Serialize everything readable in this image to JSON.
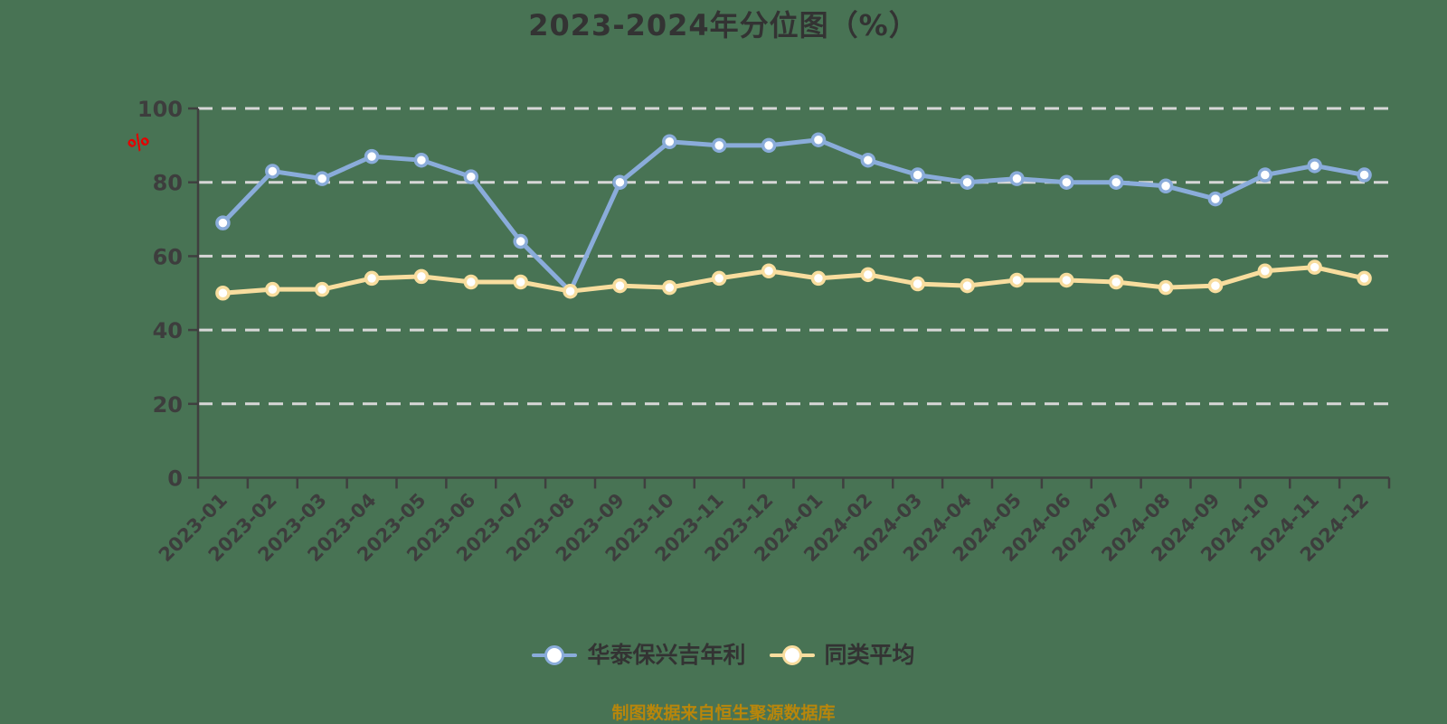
{
  "title": "2023-2024年分位图（%）",
  "y_axis_unit": "%",
  "source_note": "制图数据来自恒生聚源数据库",
  "colors": {
    "background": "#487354",
    "title_text": "#333333",
    "tick_label": "#3d3d3d",
    "gridline": "#d7d7d7",
    "axis": "#3f3f3f",
    "unit_icon": "#e60000",
    "source_text": "#b8860b",
    "marker_fill": "#ffffff",
    "series1": "#8aacda",
    "series2": "#f8dd9e"
  },
  "chart_data": {
    "type": "line",
    "title": "2023-2024年分位图（%）",
    "xlabel": "",
    "ylabel": "%",
    "ylim": [
      0,
      100
    ],
    "yticks": [
      0,
      20,
      40,
      60,
      80,
      100
    ],
    "grid": "dashed horizontal",
    "legend_position": "bottom",
    "categories": [
      "2023-01",
      "2023-02",
      "2023-03",
      "2023-04",
      "2023-05",
      "2023-06",
      "2023-07",
      "2023-08",
      "2023-09",
      "2023-10",
      "2023-11",
      "2023-12",
      "2024-01",
      "2024-02",
      "2024-03",
      "2024-04",
      "2024-05",
      "2024-06",
      "2024-07",
      "2024-08",
      "2024-09",
      "2024-10",
      "2024-11",
      "2024-12"
    ],
    "series": [
      {
        "name": "华泰保兴吉年利",
        "color": "#8aacda",
        "values": [
          69,
          83,
          81,
          87,
          86,
          81.5,
          64,
          50.5,
          80,
          91,
          90,
          90,
          91.5,
          86,
          82,
          80,
          81,
          80,
          80,
          79,
          75.5,
          82,
          84.5,
          82
        ]
      },
      {
        "name": "同类平均",
        "color": "#f8dd9e",
        "values": [
          50,
          51,
          51,
          54,
          54.5,
          53,
          53,
          50.5,
          52,
          51.5,
          54,
          56,
          54,
          55,
          52.5,
          52,
          53.5,
          53.5,
          53,
          51.5,
          52,
          56,
          57,
          54
        ]
      }
    ]
  }
}
